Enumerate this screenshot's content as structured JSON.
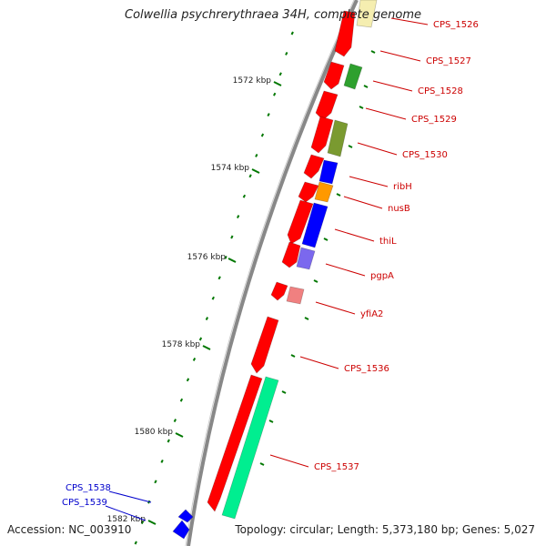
{
  "title": "Colwellia psychrerythraea 34H, complete genome",
  "accession": "Accession: NC_003910",
  "topology": "Topology: circular; Length: 5,373,180 bp; Genes: 5,027",
  "colors": {
    "red": "#ff0000",
    "green": "#2ea02e",
    "olive": "#7a9a30",
    "blue": "#0000ff",
    "orange": "#ff9900",
    "purple": "#7b68ee",
    "pink": "#f08080",
    "seafoam": "#00ee90",
    "cream": "#f5eeb0",
    "backbone": "#888888",
    "tick": "#007700",
    "red_label": "#cc0000",
    "blue_label": "#0000cc"
  },
  "kbp_labels": [
    "1572 kbp",
    "1574 kbp",
    "1576 kbp",
    "1578 kbp",
    "1580 kbp",
    "1582 kbp"
  ],
  "genes": [
    {
      "id": "CPS_1526",
      "label": "CPS_1526",
      "color": "cream"
    },
    {
      "id": "CPS_1527",
      "label": "CPS_1527",
      "color": "green"
    },
    {
      "id": "CPS_1528",
      "label": "CPS_1528",
      "color": "red"
    },
    {
      "id": "CPS_1529",
      "label": "CPS_1529",
      "color": "red"
    },
    {
      "id": "CPS_1530",
      "label": "CPS_1530",
      "color": "olive"
    },
    {
      "id": "ribH",
      "label": "ribH",
      "color": "blue"
    },
    {
      "id": "nusB",
      "label": "nusB",
      "color": "orange"
    },
    {
      "id": "thiL",
      "label": "thiL",
      "color": "blue"
    },
    {
      "id": "pgpA",
      "label": "pgpA",
      "color": "purple"
    },
    {
      "id": "yfiA2",
      "label": "yfiA2",
      "color": "pink"
    },
    {
      "id": "CPS_1536",
      "label": "CPS_1536",
      "color": "red"
    },
    {
      "id": "CPS_1537",
      "label": "CPS_1537",
      "color": "seafoam"
    },
    {
      "id": "CPS_1538",
      "label": "CPS_1538",
      "color": "blue"
    },
    {
      "id": "CPS_1539",
      "label": "CPS_1539",
      "color": "blue"
    }
  ]
}
